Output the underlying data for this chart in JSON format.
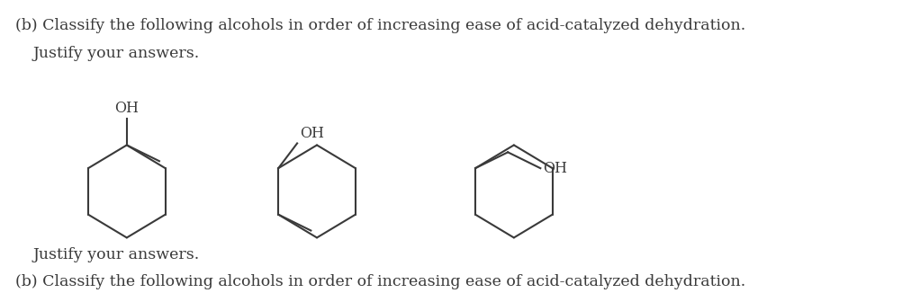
{
  "title_line1": "(b) Classify the following alcohols in order of increasing ease of acid-catalyzed dehydration.",
  "title_line2": "Justify your answers.",
  "bg_color": "#ffffff",
  "line_color": "#3a3a3a",
  "text_color": "#3a3a3a",
  "font_size_title": 12.5,
  "font_size_label": 11.5,
  "font_family": "DejaVu Serif",
  "lw": 1.5
}
